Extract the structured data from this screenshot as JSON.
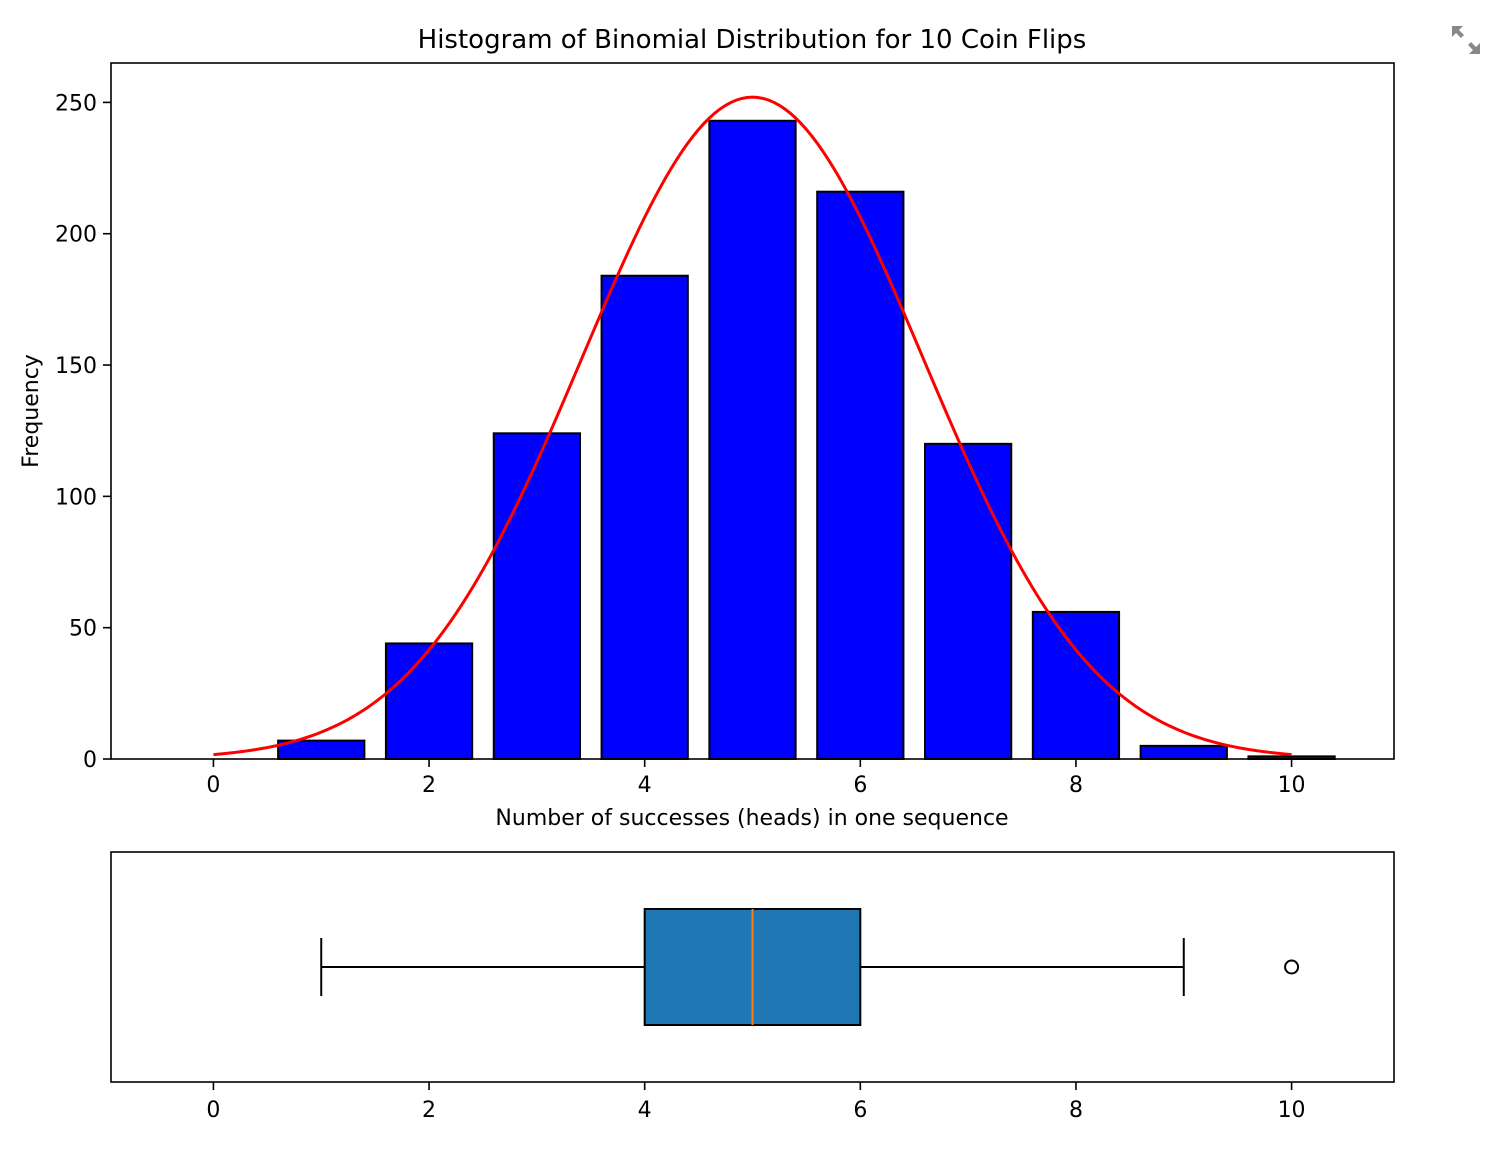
{
  "chart_data": [
    {
      "type": "bar",
      "title": "Histogram of Binomial Distribution for 10 Coin Flips",
      "xlabel": "Number of successes (heads) in one sequence",
      "ylabel": "Frequency",
      "xlim": [
        -0.95,
        10.95
      ],
      "ylim": [
        0,
        265
      ],
      "xticks": [
        0,
        2,
        4,
        6,
        8,
        10
      ],
      "yticks": [
        0,
        50,
        100,
        150,
        200,
        250
      ],
      "categories": [
        1,
        2,
        3,
        4,
        5,
        6,
        7,
        8,
        9,
        10
      ],
      "values": [
        7,
        44,
        124,
        184,
        243,
        216,
        120,
        56,
        5,
        1
      ],
      "bar_color": "#0000ff",
      "edge_color": "#000000",
      "grid": false,
      "curve": {
        "color": "#ff0000",
        "description": "normal density fit",
        "mean": 5,
        "sd": 1.58,
        "peak": 252,
        "x_range": [
          0,
          10
        ]
      }
    },
    {
      "type": "box",
      "xlim": [
        -0.95,
        10.95
      ],
      "xticks": [
        0,
        2,
        4,
        6,
        8,
        10
      ],
      "whisker_low": 1,
      "q1": 4,
      "median": 5,
      "q3": 6,
      "whisker_high": 9,
      "outliers": [
        10
      ],
      "box_color": "#1f77b4",
      "median_color": "#ff7f0e"
    }
  ],
  "toolbar": {
    "expand_icon": "expand-icon"
  }
}
